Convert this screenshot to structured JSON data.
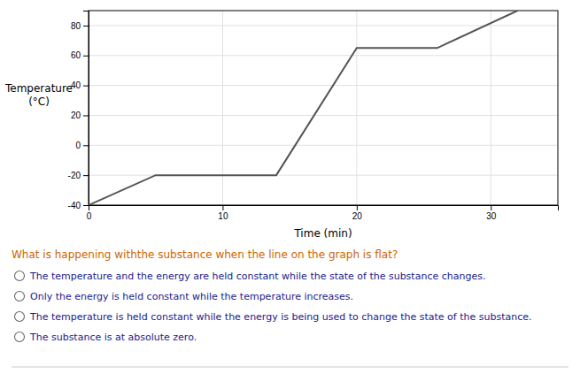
{
  "chart_data": {
    "type": "line",
    "x": [
      0,
      5,
      5,
      14,
      20,
      26,
      32
    ],
    "values": [
      -40,
      -20,
      -20,
      -20,
      65,
      65,
      90
    ],
    "color": "#555555",
    "xlim": [
      0,
      35
    ],
    "ylim": [
      -40,
      90
    ],
    "xticks": [
      0,
      10,
      20,
      30
    ],
    "yticks": [
      -40,
      -20,
      0,
      20,
      40,
      60,
      80
    ],
    "xlabel": "Time (min)",
    "ylabel": "Temperature\n(°C)",
    "grid": true,
    "annotations": [
      {
        "text": "What is happening with​the substance when the line on the graph is flat?",
        "color": "#cc6600"
      },
      {
        "text": "The temperature and the energy are held constant while the state of the substance changes.",
        "color": "#1a1a8c"
      },
      {
        "text": "Only the energy is held constant while the temperature increases.",
        "color": "#1a1a8c"
      },
      {
        "text": "The temperature is held constant while the energy is being used to change the state of the substance.",
        "color": "#1a1a8c"
      },
      {
        "text": "The substance is at absolute zero.",
        "color": "#1a1a8c"
      }
    ]
  }
}
